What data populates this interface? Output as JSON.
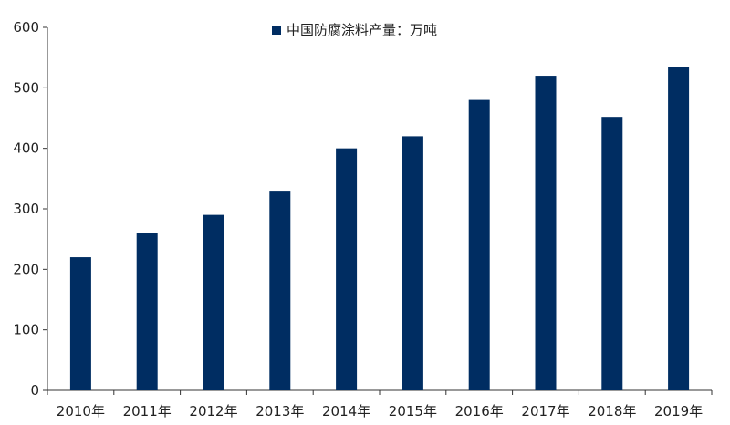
{
  "colors": {
    "bar": "#002D62",
    "axis": "#333333",
    "text": "#222222",
    "background": "#ffffff"
  },
  "legend": {
    "label": "中国防腐涂料产量：万吨",
    "placement": "top-center"
  },
  "chart_data": {
    "type": "bar",
    "categories": [
      "2010年",
      "2011年",
      "2012年",
      "2013年",
      "2014年",
      "2015年",
      "2016年",
      "2017年",
      "2018年",
      "2019年"
    ],
    "series": [
      {
        "name": "中国防腐涂料产量：万吨",
        "values": [
          220,
          260,
          290,
          330,
          400,
          420,
          480,
          520,
          452,
          535
        ]
      }
    ],
    "title": "",
    "xlabel": "",
    "ylabel": "",
    "ylim": [
      0,
      600
    ],
    "yticks": [
      0,
      100,
      200,
      300,
      400,
      500,
      600
    ],
    "grid": false,
    "legend_placement": "top-center"
  }
}
